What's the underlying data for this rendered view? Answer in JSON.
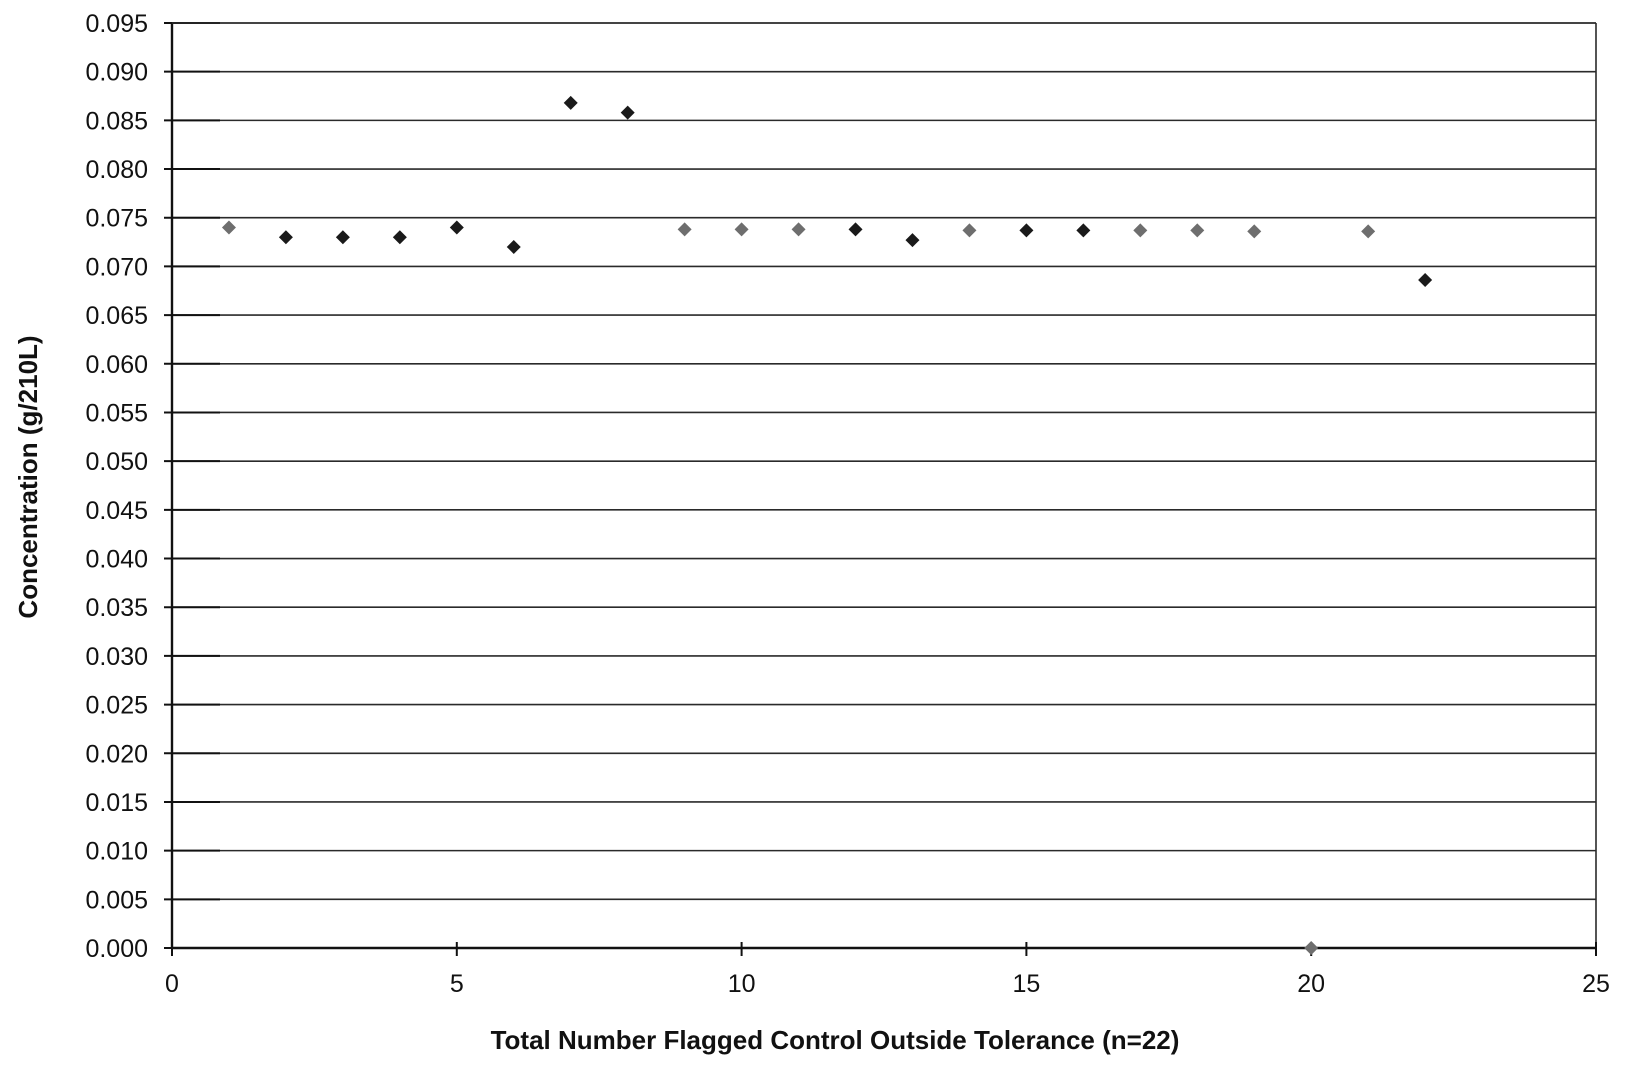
{
  "chart_data": {
    "type": "scatter",
    "title": "",
    "xlabel": "Total Number Flagged Control Outside Tolerance (n=22)",
    "ylabel": "Concentration (g/210L)",
    "xlim": [
      0,
      25
    ],
    "ylim": [
      0,
      0.095
    ],
    "xticks": [
      0,
      5,
      10,
      15,
      20,
      25
    ],
    "xtick_labels": [
      "0",
      "5",
      "10",
      "15",
      "20",
      "25"
    ],
    "yticks": [
      0,
      0.005,
      0.01,
      0.015,
      0.02,
      0.025,
      0.03,
      0.035,
      0.04,
      0.045,
      0.05,
      0.055,
      0.06,
      0.065,
      0.07,
      0.075,
      0.08,
      0.085,
      0.09,
      0.095
    ],
    "ytick_labels": [
      "0.000",
      "0.005",
      "0.010",
      "0.015",
      "0.020",
      "0.025",
      "0.030",
      "0.035",
      "0.040",
      "0.045",
      "0.050",
      "0.055",
      "0.060",
      "0.065",
      "0.070",
      "0.075",
      "0.080",
      "0.085",
      "0.090",
      "0.095"
    ],
    "grid": "horizontal",
    "legend": "none",
    "marker": "diamond",
    "colors": {
      "dark_marker": "#1a1a1a",
      "gray_marker": "#6e6e6e",
      "axis": "#111111",
      "grid": "#2a2a2a"
    },
    "points": [
      {
        "x": 1,
        "y": 0.074,
        "shade": "gray"
      },
      {
        "x": 2,
        "y": 0.073,
        "shade": "dark"
      },
      {
        "x": 3,
        "y": 0.073,
        "shade": "dark"
      },
      {
        "x": 4,
        "y": 0.073,
        "shade": "dark"
      },
      {
        "x": 5,
        "y": 0.074,
        "shade": "dark"
      },
      {
        "x": 6,
        "y": 0.072,
        "shade": "dark"
      },
      {
        "x": 7,
        "y": 0.0868,
        "shade": "dark"
      },
      {
        "x": 8,
        "y": 0.0858,
        "shade": "dark"
      },
      {
        "x": 9,
        "y": 0.0738,
        "shade": "gray"
      },
      {
        "x": 10,
        "y": 0.0738,
        "shade": "gray"
      },
      {
        "x": 11,
        "y": 0.0738,
        "shade": "gray"
      },
      {
        "x": 12,
        "y": 0.0738,
        "shade": "dark"
      },
      {
        "x": 13,
        "y": 0.0727,
        "shade": "dark"
      },
      {
        "x": 14,
        "y": 0.0737,
        "shade": "gray"
      },
      {
        "x": 15,
        "y": 0.0737,
        "shade": "dark"
      },
      {
        "x": 16,
        "y": 0.0737,
        "shade": "dark"
      },
      {
        "x": 17,
        "y": 0.0737,
        "shade": "gray"
      },
      {
        "x": 18,
        "y": 0.0737,
        "shade": "gray"
      },
      {
        "x": 19,
        "y": 0.0736,
        "shade": "gray"
      },
      {
        "x": 20,
        "y": 0.0,
        "shade": "gray"
      },
      {
        "x": 21,
        "y": 0.0736,
        "shade": "gray"
      },
      {
        "x": 22,
        "y": 0.0686,
        "shade": "dark"
      }
    ]
  }
}
